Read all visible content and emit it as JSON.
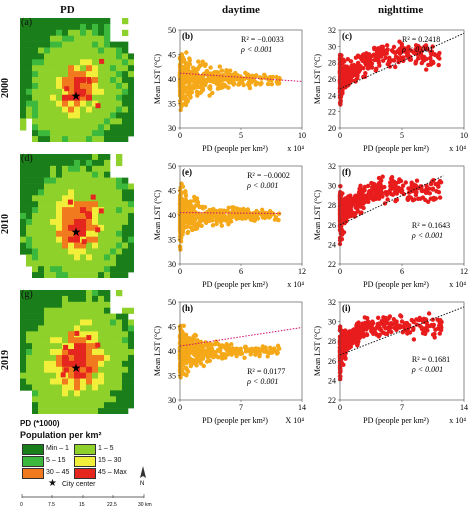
{
  "headers": {
    "pd": "PD",
    "daytime": "daytime",
    "nighttime": "nighttime"
  },
  "years": [
    "2000",
    "2010",
    "2019"
  ],
  "map_labels": [
    "(a)",
    "(d)",
    "(g)"
  ],
  "colors": {
    "min_1": "#1a7f1a",
    "v1_5": "#8ed12b",
    "v5_15": "#3cb83c",
    "v15_30": "#f2ef3a",
    "v30_45": "#f27a1e",
    "v45_max": "#e4261e",
    "day_points": "#f5a818",
    "night_points": "#e81c1c"
  },
  "legend": {
    "title": "PD (*1000)",
    "subtitle": "Population per km²",
    "items": [
      {
        "label": "Min – 1",
        "color": "#1a7f1a"
      },
      {
        "label": "1 – 5",
        "color": "#8ed12b"
      },
      {
        "label": "5 – 15",
        "color": "#3cb83c"
      },
      {
        "label": "15 – 30",
        "color": "#f2ef3a"
      },
      {
        "label": "30 – 45",
        "color": "#f27a1e"
      },
      {
        "label": "45 – Max",
        "color": "#e4261e"
      }
    ],
    "city_center": "City center",
    "scale_ticks": [
      "0",
      "7.5",
      "15",
      "22.5",
      "30 km"
    ],
    "north": "N"
  },
  "chart_data": [
    {
      "panel": "(b)",
      "type": "scatter",
      "period": "daytime",
      "year": "2000",
      "ylabel": "Mean LST (°C)",
      "xlabel": "PD (people per km²)",
      "x_unit_suffix": "x 10⁴",
      "xlim": [
        0,
        10
      ],
      "ylim": [
        30,
        50
      ],
      "xticks": [
        "0",
        "5",
        "10"
      ],
      "yticks": [
        "30",
        "35",
        "40",
        "45",
        "50"
      ],
      "annotations": [
        "R² = −0.0033",
        "ρ < 0.001"
      ],
      "trend": {
        "x": [
          0,
          10
        ],
        "y": [
          41.2,
          39.5
        ],
        "style": "dotted",
        "color": "#d40e6a"
      }
    },
    {
      "panel": "(c)",
      "type": "scatter",
      "period": "nighttime",
      "year": "2000",
      "ylabel": "Mean LST (°C)",
      "xlabel": "PD (people per km²)",
      "x_unit_suffix": "x 10⁴",
      "xlim": [
        0,
        10
      ],
      "ylim": [
        20,
        32
      ],
      "xticks": [
        "0",
        "5",
        "10"
      ],
      "yticks": [
        "20",
        "22",
        "24",
        "26",
        "28",
        "30",
        "32"
      ],
      "annotations": [
        "R² = 0.2418",
        "ρ < 0.001"
      ],
      "trend": {
        "x": [
          0,
          10
        ],
        "y": [
          24.8,
          31.6
        ],
        "style": "dotted",
        "color": "#111111"
      }
    },
    {
      "panel": "(e)",
      "type": "scatter",
      "period": "daytime",
      "year": "2010",
      "ylabel": "Mean LST (°C)",
      "xlabel": "PD (people per km²)",
      "x_unit_suffix": "x 10⁴",
      "xlim": [
        0,
        12
      ],
      "ylim": [
        30,
        50
      ],
      "xticks": [
        "0",
        "6",
        "12"
      ],
      "yticks": [
        "30",
        "35",
        "40",
        "45",
        "50"
      ],
      "annotations": [
        "R² = −0.0002",
        "ρ < 0.001"
      ],
      "trend": {
        "x": [
          0,
          10
        ],
        "y": [
          40.5,
          40.3
        ],
        "style": "dotted",
        "color": "#d40e6a"
      }
    },
    {
      "panel": "(f)",
      "type": "scatter",
      "period": "nighttime",
      "year": "2010",
      "ylabel": "Mean LST (°C)",
      "xlabel": "PD (people per km²)",
      "x_unit_suffix": "x 10⁴",
      "xlim": [
        0,
        12
      ],
      "ylim": [
        22,
        32
      ],
      "xticks": [
        "0",
        "6",
        "12"
      ],
      "yticks": [
        "22",
        "24",
        "26",
        "28",
        "30",
        "32"
      ],
      "annotations": [
        "R² = 0.1643",
        "ρ < 0.001"
      ],
      "trend": {
        "x": [
          0,
          10
        ],
        "y": [
          26.0,
          31.0
        ],
        "style": "dotted",
        "color": "#111111"
      }
    },
    {
      "panel": "(h)",
      "type": "scatter",
      "period": "daytime",
      "year": "2019",
      "ylabel": "Mean LST (°C)",
      "xlabel": "PD (people per km²)",
      "x_unit_suffix": "X 10⁴",
      "xlim": [
        0,
        14
      ],
      "ylim": [
        30,
        50
      ],
      "xticks": [
        "0",
        "7",
        "14"
      ],
      "yticks": [
        "30",
        "35",
        "40",
        "45",
        "50"
      ],
      "annotations": [
        "R² = 0.0177",
        "ρ < 0.001"
      ],
      "trend": {
        "x": [
          0,
          14
        ],
        "y": [
          41.0,
          44.8
        ],
        "style": "dotted",
        "color": "#d40e6a"
      }
    },
    {
      "panel": "(i)",
      "type": "scatter",
      "period": "nighttime",
      "year": "2019",
      "ylabel": "Mean LST (°C)",
      "xlabel": "PD (people per km²)",
      "x_unit_suffix": "x 10⁴",
      "xlim": [
        0,
        14
      ],
      "ylim": [
        22,
        32
      ],
      "xticks": [
        "0",
        "7",
        "14"
      ],
      "yticks": [
        "22",
        "24",
        "26",
        "28",
        "30",
        "32"
      ],
      "annotations": [
        "R² = 0.1681",
        "ρ < 0.001"
      ],
      "trend": {
        "x": [
          0,
          14
        ],
        "y": [
          26.6,
          31.5
        ],
        "style": "dotted",
        "color": "#111111"
      }
    }
  ]
}
